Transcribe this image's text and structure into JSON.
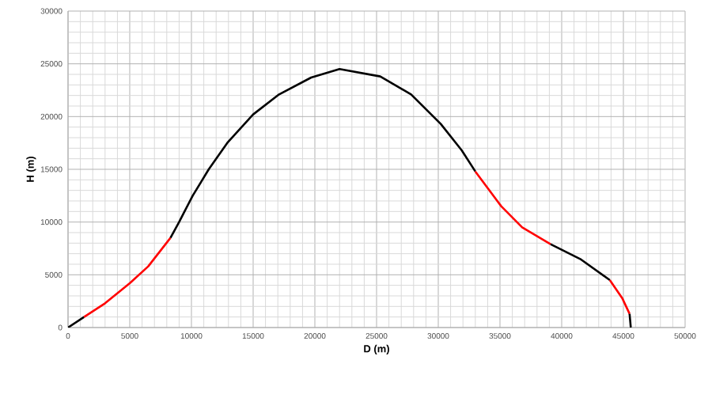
{
  "chart_data": {
    "type": "line",
    "xlabel": "D (m)",
    "ylabel": "H (m)",
    "xlim": [
      0,
      50000
    ],
    "ylim": [
      0,
      30000
    ],
    "xticks": [
      0,
      5000,
      10000,
      15000,
      20000,
      25000,
      30000,
      35000,
      40000,
      45000,
      50000
    ],
    "yticks": [
      0,
      5000,
      10000,
      15000,
      20000,
      25000,
      30000
    ],
    "grid": true,
    "marker": "none",
    "line_style": "solid",
    "series": [
      {
        "color": "#000000",
        "x": [
          0,
          1300
        ],
        "values": [
          0,
          1000
        ]
      },
      {
        "color": "#ff0000",
        "x": [
          1300,
          3000,
          5000,
          6500,
          7300,
          8300
        ],
        "values": [
          1000,
          2300,
          4200,
          5800,
          7000,
          8500
        ]
      },
      {
        "color": "#000000",
        "x": [
          8300,
          9000,
          10100,
          11400,
          12900,
          15000,
          17100,
          19700,
          22000,
          25300,
          27800,
          30200,
          31900,
          33000
        ],
        "values": [
          8500,
          10000,
          12500,
          15000,
          17500,
          20200,
          22100,
          23700,
          24500,
          23800,
          22100,
          19300,
          16800,
          14800
        ]
      },
      {
        "color": "#ff0000",
        "x": [
          33000,
          35100,
          36800,
          39100
        ],
        "values": [
          14800,
          11500,
          9500,
          7900
        ]
      },
      {
        "color": "#000000",
        "x": [
          39100,
          41500,
          43900
        ],
        "values": [
          7900,
          6500,
          4500
        ]
      },
      {
        "color": "#ff0000",
        "x": [
          43900,
          44900,
          45500
        ],
        "values": [
          4500,
          2800,
          1300
        ]
      },
      {
        "color": "#000000",
        "x": [
          45500,
          45600
        ],
        "values": [
          1300,
          0
        ]
      }
    ]
  }
}
